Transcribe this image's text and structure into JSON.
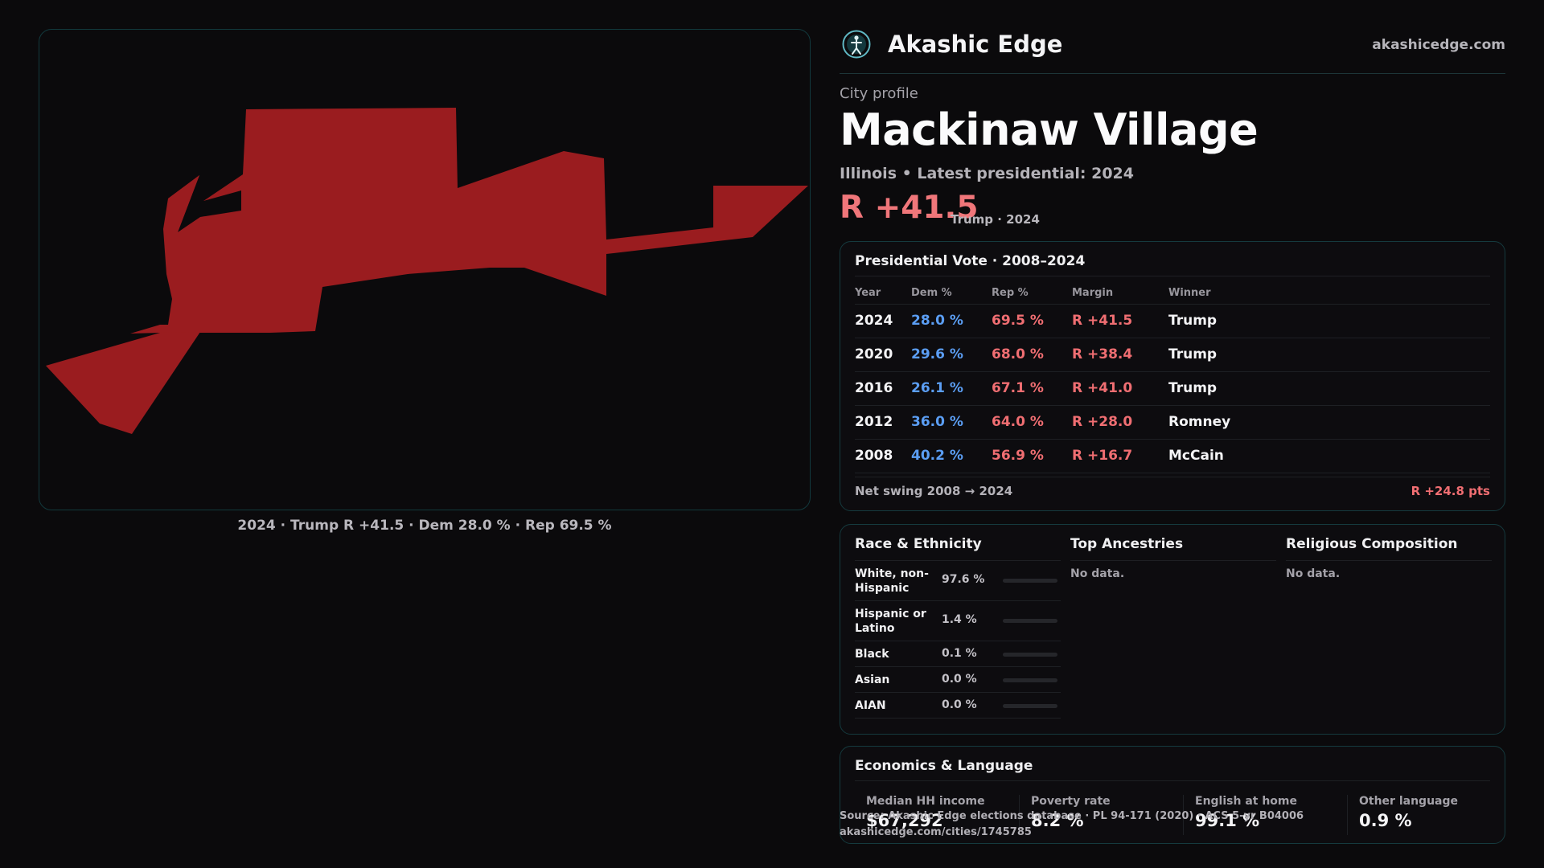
{
  "map": {
    "caption": "2024 · Trump R +41.5 · Dem 28.0 % · Rep 69.5 %",
    "fill_color": "#9a1c1f"
  },
  "header": {
    "brand": "Akashic Edge",
    "domain": "akashicedge.com",
    "logo_icon": "globe-person-icon"
  },
  "profile": {
    "eyebrow": "City profile",
    "city": "Mackinaw Village",
    "subline": "Illinois • Latest presidential: 2024",
    "margin": "R +41.5",
    "margin_sub": "Trump · 2024"
  },
  "presidential": {
    "title": "Presidential Vote · 2008–2024",
    "columns": [
      "Year",
      "Dem %",
      "Rep %",
      "Margin",
      "Winner"
    ],
    "rows": [
      {
        "year": "2024",
        "dem": "28.0 %",
        "rep": "69.5 %",
        "margin": "R +41.5",
        "winner": "Trump"
      },
      {
        "year": "2020",
        "dem": "29.6 %",
        "rep": "68.0 %",
        "margin": "R +38.4",
        "winner": "Trump"
      },
      {
        "year": "2016",
        "dem": "26.1 %",
        "rep": "67.1 %",
        "margin": "R +41.0",
        "winner": "Trump"
      },
      {
        "year": "2012",
        "dem": "36.0 %",
        "rep": "64.0 %",
        "margin": "R +28.0",
        "winner": "Romney"
      },
      {
        "year": "2008",
        "dem": "40.2 %",
        "rep": "56.9 %",
        "margin": "R +16.7",
        "winner": "McCain"
      }
    ],
    "swing_label": "Net swing 2008 → 2024",
    "swing_value": "R +24.8 pts"
  },
  "demographics": {
    "race": {
      "title": "Race & Ethnicity",
      "rows": [
        {
          "label": "White, non-Hispanic",
          "value": "97.6 %",
          "pct": 97.6,
          "color": "#8a8f96"
        },
        {
          "label": "Hispanic or Latino",
          "value": "1.4 %",
          "pct": 1.4,
          "color": "#c8823a"
        },
        {
          "label": "Black",
          "value": "0.1 %",
          "pct": 0.1,
          "color": "#8a8f96"
        },
        {
          "label": "Asian",
          "value": "0.0 %",
          "pct": 0.0,
          "color": "#8a8f96"
        },
        {
          "label": "AIAN",
          "value": "0.0 %",
          "pct": 0.0,
          "color": "#8a8f96"
        }
      ]
    },
    "ancestries": {
      "title": "Top Ancestries",
      "empty": "No data."
    },
    "religion": {
      "title": "Religious Composition",
      "empty": "No data."
    }
  },
  "economics": {
    "title": "Economics & Language",
    "stats": [
      {
        "label": "Median HH income",
        "value": "$67,292"
      },
      {
        "label": "Poverty rate",
        "value": "8.2 %"
      },
      {
        "label": "English at home",
        "value": "99.1 %"
      },
      {
        "label": "Other language",
        "value": "0.9 %"
      }
    ]
  },
  "source": {
    "line1": "Source: Akashic Edge elections database · PL 94-171 (2020) · ACS 5-yr B04006",
    "line2": "akashicedge.com/cities/1745785"
  }
}
